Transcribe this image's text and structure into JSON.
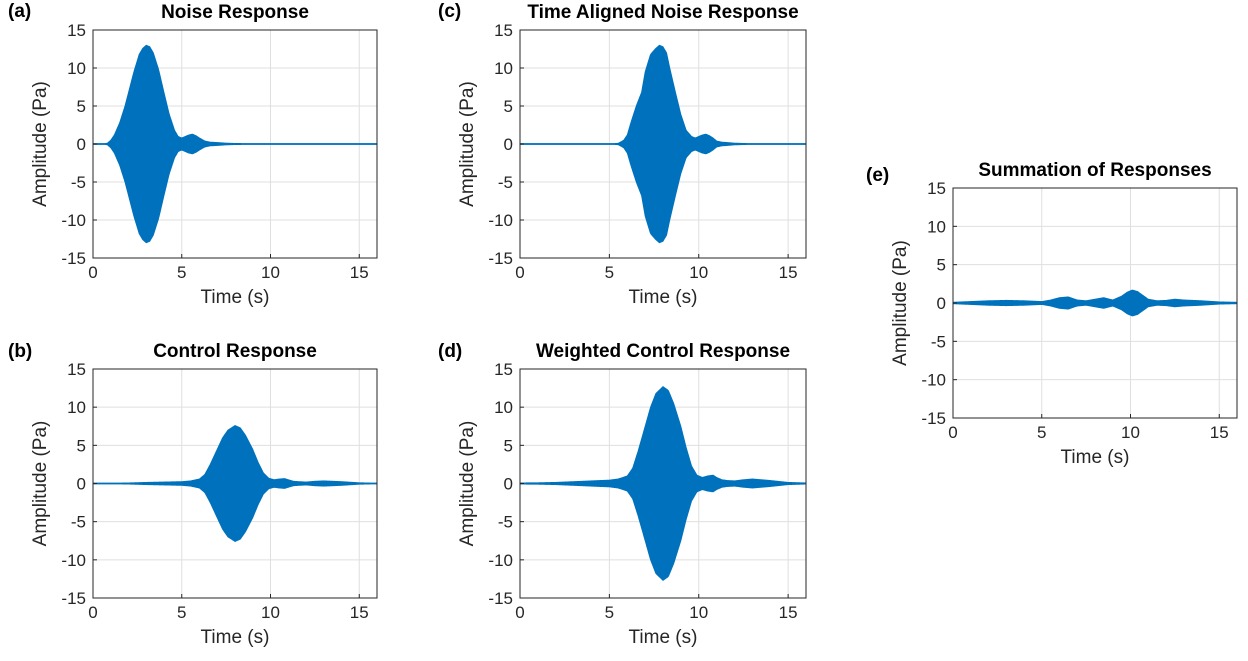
{
  "colors": {
    "series": "#0072bd",
    "grid": "#dfdfdf",
    "axis": "#262626"
  },
  "chart_data": [
    {
      "id": "a",
      "panel_label": "(a)",
      "type": "area",
      "title": "Noise Response",
      "xlabel": "Time (s)",
      "ylabel": "Amplitude (Pa)",
      "xlim": [
        0,
        16
      ],
      "ylim": [
        -15,
        15
      ],
      "xticks": [
        0,
        5,
        10,
        15
      ],
      "yticks": [
        -15,
        -10,
        -5,
        0,
        5,
        10,
        15
      ],
      "grid": true,
      "envelope": {
        "x": [
          0,
          0.5,
          0.8,
          1.0,
          1.2,
          1.5,
          1.8,
          2.0,
          2.3,
          2.6,
          2.8,
          3.0,
          3.2,
          3.4,
          3.7,
          4.0,
          4.3,
          4.6,
          4.8,
          5.0,
          5.2,
          5.4,
          5.6,
          5.8,
          6.0,
          6.3,
          6.6,
          7.0,
          7.5,
          8.0,
          9.0,
          10.0,
          12.0,
          14.0,
          16.0
        ],
        "amplitude": [
          0,
          0.02,
          0.1,
          0.5,
          1.2,
          2.8,
          5.0,
          6.8,
          9.5,
          11.8,
          12.6,
          13.0,
          12.8,
          12.0,
          9.8,
          6.8,
          3.9,
          1.8,
          1.0,
          0.8,
          1.0,
          1.2,
          1.3,
          1.1,
          0.8,
          0.4,
          0.25,
          0.2,
          0.12,
          0.08,
          0.05,
          0.03,
          0.02,
          0.02,
          0.02
        ]
      }
    },
    {
      "id": "b",
      "panel_label": "(b)",
      "type": "area",
      "title": "Control Response",
      "xlabel": "Time (s)",
      "ylabel": "Amplitude (Pa)",
      "xlim": [
        0,
        16
      ],
      "ylim": [
        -15,
        15
      ],
      "xticks": [
        0,
        5,
        10,
        15
      ],
      "yticks": [
        -15,
        -10,
        -5,
        0,
        5,
        10,
        15
      ],
      "grid": true,
      "envelope": {
        "x": [
          0,
          1.0,
          2.0,
          3.0,
          4.0,
          5.0,
          5.5,
          6.0,
          6.3,
          6.6,
          7.0,
          7.3,
          7.6,
          8.0,
          8.3,
          8.6,
          9.0,
          9.3,
          9.6,
          9.9,
          10.2,
          10.5,
          10.8,
          11.0,
          11.3,
          11.6,
          12.0,
          12.5,
          13.0,
          13.5,
          14.0,
          15.0,
          16.0
        ],
        "amplitude": [
          0.05,
          0.05,
          0.08,
          0.15,
          0.2,
          0.25,
          0.35,
          0.6,
          1.2,
          2.5,
          4.5,
          6.0,
          7.0,
          7.6,
          7.3,
          6.3,
          4.5,
          2.8,
          1.4,
          0.7,
          0.5,
          0.6,
          0.65,
          0.5,
          0.3,
          0.25,
          0.2,
          0.3,
          0.35,
          0.3,
          0.25,
          0.1,
          0.05
        ]
      }
    },
    {
      "id": "c",
      "panel_label": "(c)",
      "type": "area",
      "title": "Time Aligned Noise Response",
      "xlabel": "Time (s)",
      "ylabel": "Amplitude (Pa)",
      "xlim": [
        0,
        16
      ],
      "ylim": [
        -15,
        15
      ],
      "xticks": [
        0,
        5,
        10,
        15
      ],
      "yticks": [
        -15,
        -10,
        -5,
        0,
        5,
        10,
        15
      ],
      "grid": true,
      "envelope": {
        "x": [
          0,
          5.0,
          5.5,
          5.8,
          6.0,
          6.2,
          6.5,
          6.8,
          7.0,
          7.3,
          7.6,
          7.8,
          8.0,
          8.2,
          8.4,
          8.7,
          9.0,
          9.3,
          9.6,
          9.8,
          10.0,
          10.2,
          10.4,
          10.6,
          10.8,
          11.0,
          11.3,
          11.6,
          12.0,
          12.5,
          13.0,
          14.0,
          15.0,
          16.0
        ],
        "amplitude": [
          0.02,
          0.02,
          0.1,
          0.5,
          1.2,
          2.8,
          5.0,
          6.8,
          9.5,
          11.8,
          12.6,
          13.0,
          12.8,
          12.0,
          9.8,
          6.8,
          3.9,
          1.8,
          1.0,
          0.8,
          1.0,
          1.2,
          1.3,
          1.1,
          0.8,
          0.4,
          0.25,
          0.2,
          0.12,
          0.08,
          0.05,
          0.03,
          0.02,
          0.02
        ]
      }
    },
    {
      "id": "d",
      "panel_label": "(d)",
      "type": "area",
      "title": "Weighted Control Response",
      "xlabel": "Time (s)",
      "ylabel": "Amplitude (Pa)",
      "xlim": [
        0,
        16
      ],
      "ylim": [
        -15,
        15
      ],
      "xticks": [
        0,
        5,
        10,
        15
      ],
      "yticks": [
        -15,
        -10,
        -5,
        0,
        5,
        10,
        15
      ],
      "grid": true,
      "envelope": {
        "x": [
          0,
          1.0,
          2.0,
          3.0,
          4.0,
          5.0,
          5.5,
          6.0,
          6.3,
          6.6,
          7.0,
          7.3,
          7.6,
          8.0,
          8.3,
          8.6,
          9.0,
          9.3,
          9.6,
          9.9,
          10.2,
          10.5,
          10.8,
          11.0,
          11.3,
          11.6,
          12.0,
          12.5,
          13.0,
          13.5,
          14.0,
          15.0,
          16.0
        ],
        "amplitude": [
          0.08,
          0.1,
          0.15,
          0.25,
          0.35,
          0.45,
          0.6,
          1.0,
          2.0,
          4.2,
          7.5,
          10.0,
          11.8,
          12.7,
          12.2,
          10.5,
          7.5,
          4.7,
          2.3,
          1.1,
          0.8,
          1.0,
          1.1,
          0.8,
          0.5,
          0.4,
          0.35,
          0.5,
          0.6,
          0.5,
          0.4,
          0.15,
          0.08
        ]
      }
    },
    {
      "id": "e",
      "panel_label": "(e)",
      "type": "area",
      "title": "Summation of Responses",
      "xlabel": "Time (s)",
      "ylabel": "Amplitude (Pa)",
      "xlim": [
        0,
        16
      ],
      "ylim": [
        -15,
        15
      ],
      "xticks": [
        0,
        5,
        10,
        15
      ],
      "yticks": [
        -15,
        -10,
        -5,
        0,
        5,
        10,
        15
      ],
      "grid": true,
      "envelope": {
        "x": [
          0,
          1.0,
          2.0,
          3.0,
          4.0,
          5.0,
          5.5,
          6.0,
          6.5,
          7.0,
          7.5,
          8.0,
          8.5,
          9.0,
          9.5,
          9.8,
          10.1,
          10.4,
          10.7,
          11.0,
          11.5,
          12.0,
          12.5,
          13.0,
          13.5,
          14.0,
          15.0,
          16.0
        ],
        "amplitude": [
          0.1,
          0.2,
          0.3,
          0.35,
          0.3,
          0.2,
          0.4,
          0.7,
          0.8,
          0.4,
          0.3,
          0.5,
          0.7,
          0.4,
          0.9,
          1.4,
          1.7,
          1.5,
          1.0,
          0.5,
          0.3,
          0.35,
          0.5,
          0.4,
          0.35,
          0.3,
          0.15,
          0.1
        ]
      }
    }
  ]
}
